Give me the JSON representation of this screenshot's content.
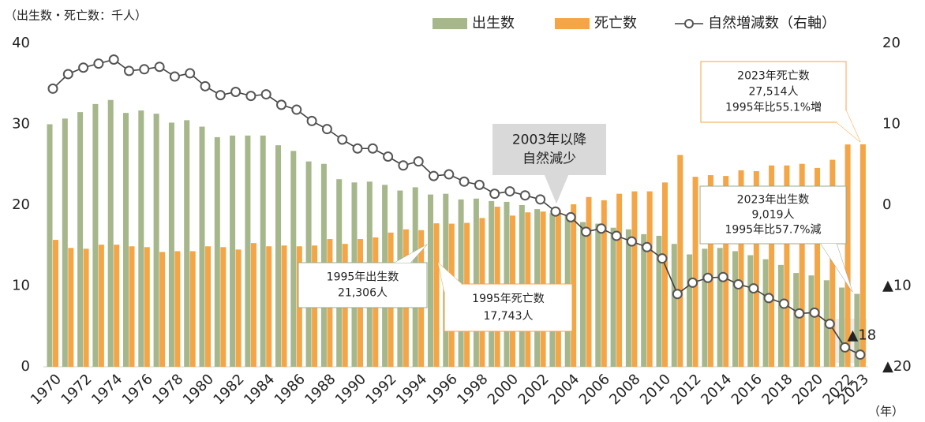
{
  "chart_data": {
    "type": "bar_line",
    "unit_label": "（出生数・死亡数：千人）",
    "x_unit_label": "（年）",
    "categories": [
      "1970",
      null,
      "1972",
      null,
      "1974",
      null,
      "1976",
      null,
      "1978",
      null,
      "1980",
      null,
      "1982",
      null,
      "1984",
      null,
      "1986",
      null,
      "1988",
      null,
      "1990",
      null,
      "1992",
      null,
      "1994",
      null,
      "1996",
      null,
      "1998",
      null,
      "2000",
      null,
      "2002",
      null,
      "2004",
      null,
      "2006",
      null,
      "2008",
      null,
      "2010",
      null,
      "2012",
      null,
      "2014",
      null,
      "2016",
      null,
      "2018",
      null,
      "2020",
      null,
      "2022",
      "2023"
    ],
    "ylim": [
      0,
      40
    ],
    "yticks": [
      0,
      10,
      20,
      30,
      40
    ],
    "y2lim": [
      -20,
      20
    ],
    "y2ticks": [
      {
        "value": -20,
        "label": "▲20"
      },
      {
        "value": -10,
        "label": "▲10"
      },
      0,
      10,
      20
    ],
    "series": [
      {
        "name": "出生数",
        "type": "bar",
        "color": "#a5b78b",
        "values": [
          30.0,
          30.7,
          31.5,
          32.5,
          33.0,
          31.4,
          31.7,
          31.3,
          30.2,
          30.5,
          29.7,
          28.4,
          28.6,
          28.6,
          28.6,
          27.4,
          26.7,
          25.4,
          25.1,
          23.2,
          22.8,
          22.9,
          22.5,
          21.8,
          22.2,
          21.306,
          21.4,
          20.7,
          20.8,
          20.5,
          20.4,
          20.0,
          19.5,
          19.0,
          18.8,
          17.9,
          17.7,
          17.2,
          17.0,
          16.4,
          16.2,
          15.2,
          13.9,
          14.6,
          14.7,
          14.3,
          13.8,
          13.3,
          12.6,
          11.6,
          11.3,
          10.7,
          9.8,
          9.019
        ]
      },
      {
        "name": "死亡数",
        "type": "bar",
        "color": "#f4a546",
        "values": [
          15.7,
          14.7,
          14.6,
          15.1,
          15.1,
          14.9,
          14.8,
          14.2,
          14.3,
          14.3,
          14.9,
          14.8,
          14.5,
          15.3,
          14.9,
          15.0,
          14.9,
          15.0,
          15.8,
          15.2,
          15.8,
          16.0,
          16.6,
          17.0,
          16.9,
          17.743,
          17.7,
          17.8,
          18.4,
          19.8,
          18.7,
          19.1,
          19.2,
          19.4,
          20.1,
          21.0,
          20.6,
          21.4,
          21.7,
          21.7,
          22.8,
          26.2,
          23.5,
          23.7,
          23.6,
          24.3,
          24.2,
          24.9,
          24.9,
          25.1,
          24.6,
          25.6,
          27.5,
          27.514
        ]
      },
      {
        "name": "自然増減数（右軸）",
        "type": "line",
        "axis": "y2",
        "color": "#404040",
        "values": [
          14.4,
          16.2,
          17.0,
          17.5,
          18.0,
          16.6,
          16.8,
          17.1,
          15.9,
          16.3,
          14.7,
          13.6,
          14.0,
          13.5,
          13.7,
          12.4,
          11.8,
          10.4,
          9.4,
          8.1,
          7.0,
          7.0,
          6.0,
          4.9,
          5.4,
          3.6,
          3.8,
          2.9,
          2.5,
          1.4,
          1.7,
          1.2,
          0.7,
          -0.8,
          -1.5,
          -3.3,
          -2.9,
          -3.8,
          -4.5,
          -5.2,
          -6.6,
          -11.0,
          -9.6,
          -9.0,
          -8.9,
          -9.8,
          -10.3,
          -11.5,
          -12.2,
          -13.4,
          -13.3,
          -14.7,
          -17.6,
          -18.495
        ],
        "value_labels": [
          null,
          null,
          null,
          null,
          null,
          null,
          null,
          null,
          null,
          null,
          null,
          null,
          null,
          null,
          null,
          null,
          null,
          null,
          null,
          null,
          null,
          null,
          null,
          null,
          null,
          null,
          null,
          null,
          null,
          null,
          null,
          null,
          null,
          null,
          null,
          null,
          null,
          null,
          null,
          null,
          null,
          null,
          null,
          null,
          null,
          null,
          null,
          null,
          null,
          null,
          null,
          null,
          null,
          "▲18"
        ]
      }
    ],
    "legend": "top",
    "annotations": [
      {
        "lines": [
          "2003年以降",
          "自然減少"
        ]
      },
      {
        "lines": [
          "1995年出生数",
          "21,306人"
        ]
      },
      {
        "lines": [
          "1995年死亡数",
          "17,743人"
        ]
      },
      {
        "lines": [
          "2023年死亡数",
          "27,514人",
          "1995年比55.1%増"
        ]
      },
      {
        "lines": [
          "2023年出生数",
          "9,019人",
          "1995年比57.7%減"
        ]
      }
    ]
  }
}
